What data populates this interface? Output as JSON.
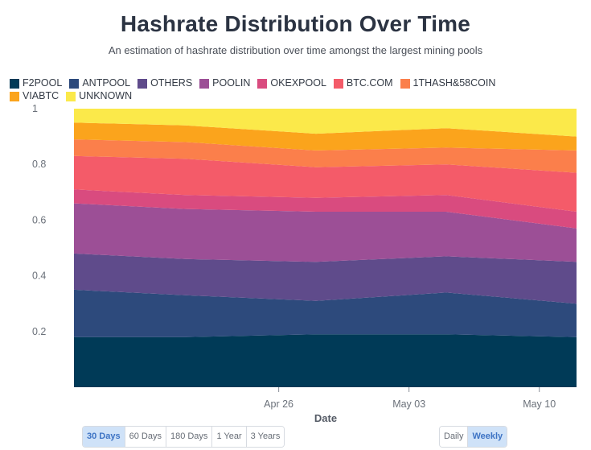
{
  "title": "Hashrate Distribution Over Time",
  "subtitle": "An estimation of hashrate distribution over time amongst the largest mining pools",
  "range_buttons": [
    {
      "label": "30 Days",
      "active": true
    },
    {
      "label": "60 Days",
      "active": false
    },
    {
      "label": "180 Days",
      "active": false
    },
    {
      "label": "1 Year",
      "active": false
    },
    {
      "label": "3 Years",
      "active": false
    }
  ],
  "frequency_buttons": [
    {
      "label": "Daily",
      "active": false
    },
    {
      "label": "Weekly",
      "active": true
    }
  ],
  "chart_data": {
    "type": "area",
    "stacked": true,
    "xlabel": "Date",
    "ylabel": "",
    "ylim": [
      0,
      1
    ],
    "yticks": [
      0.2,
      0.4,
      0.6,
      0.8,
      1
    ],
    "ytick_labels": [
      "0.2",
      "0.4",
      "0.6",
      "0.8",
      "1"
    ],
    "x": [
      "2020-04-15",
      "2020-04-21",
      "2020-04-28",
      "2020-05-05",
      "2020-05-12"
    ],
    "xrange": [
      "2020-04-15",
      "2020-05-12"
    ],
    "xticks": [
      "2020-04-26",
      "2020-05-03",
      "2020-05-10"
    ],
    "xtick_labels": [
      "Apr 26",
      "May 03",
      "May 10"
    ],
    "grid": false,
    "legend_position": "top-left",
    "series": [
      {
        "name": "F2POOL",
        "color": "#003a57",
        "values": [
          0.18,
          0.18,
          0.19,
          0.19,
          0.18
        ]
      },
      {
        "name": "ANTPOOL",
        "color": "#2d4a7c",
        "values": [
          0.17,
          0.15,
          0.12,
          0.15,
          0.12
        ]
      },
      {
        "name": "OTHERS",
        "color": "#5f4b8b",
        "values": [
          0.13,
          0.13,
          0.14,
          0.13,
          0.15
        ]
      },
      {
        "name": "POOLIN",
        "color": "#9c4f96",
        "values": [
          0.18,
          0.18,
          0.18,
          0.16,
          0.12
        ]
      },
      {
        "name": "OKEXPOOL",
        "color": "#d94b7f",
        "values": [
          0.05,
          0.05,
          0.05,
          0.06,
          0.06
        ]
      },
      {
        "name": "BTC.COM",
        "color": "#f45b69",
        "values": [
          0.12,
          0.13,
          0.11,
          0.11,
          0.14
        ]
      },
      {
        "name": "1THASH&58COIN",
        "color": "#fb7f4b",
        "values": [
          0.06,
          0.06,
          0.06,
          0.06,
          0.08
        ]
      },
      {
        "name": "VIABTC",
        "color": "#fba41c",
        "values": [
          0.06,
          0.06,
          0.06,
          0.07,
          0.05
        ]
      },
      {
        "name": "UNKNOWN",
        "color": "#fbe94a",
        "values": [
          0.05,
          0.06,
          0.09,
          0.07,
          0.1
        ]
      }
    ]
  }
}
